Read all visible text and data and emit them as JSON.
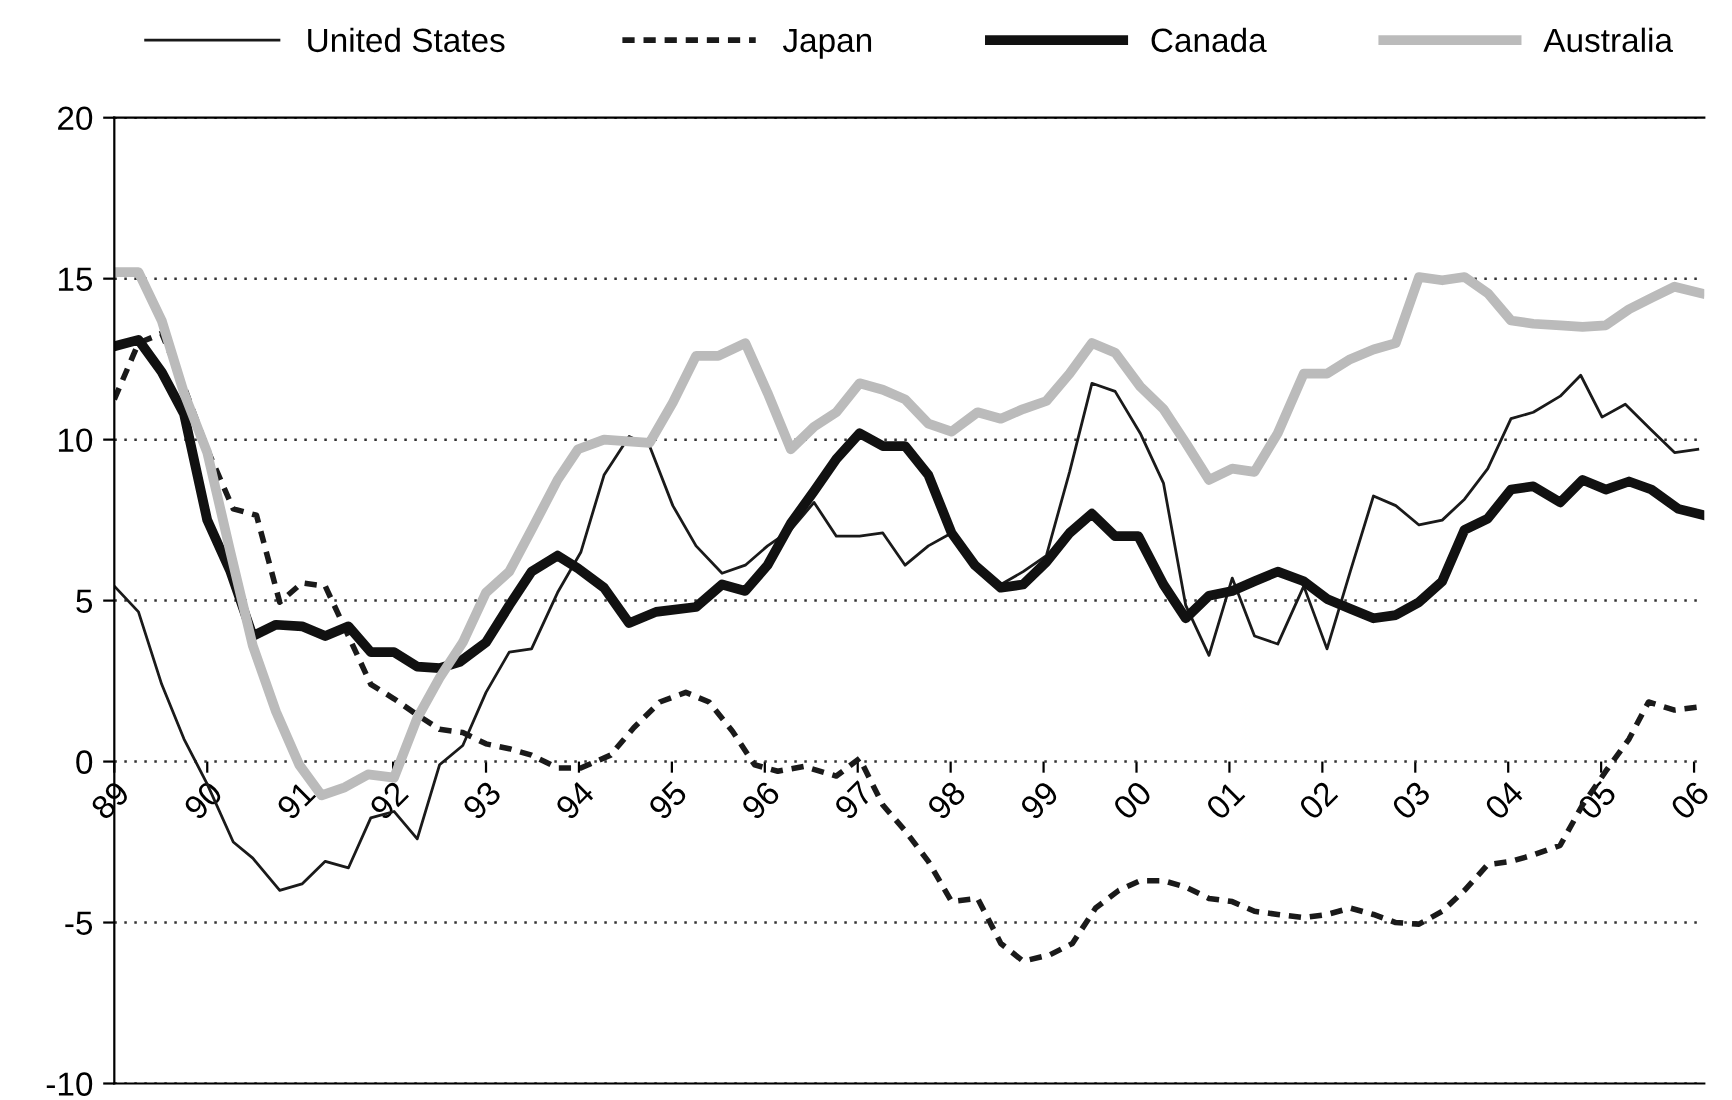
{
  "chart_data": {
    "type": "line",
    "xlim": [
      1989,
      2006.11
    ],
    "ylim": [
      -10,
      20
    ],
    "yticks": [
      -10,
      -5,
      0,
      5,
      10,
      15,
      20
    ],
    "xticks": [
      {
        "value": 1989,
        "label": "89"
      },
      {
        "value": 1990,
        "label": "90"
      },
      {
        "value": 1991,
        "label": "91"
      },
      {
        "value": 1992,
        "label": "92"
      },
      {
        "value": 1993,
        "label": "93"
      },
      {
        "value": 1994,
        "label": "94"
      },
      {
        "value": 1995,
        "label": "95"
      },
      {
        "value": 1996,
        "label": "96"
      },
      {
        "value": 1997,
        "label": "97"
      },
      {
        "value": 1998,
        "label": "98"
      },
      {
        "value": 1999,
        "label": "99"
      },
      {
        "value": 2000,
        "label": "00"
      },
      {
        "value": 2001,
        "label": "01"
      },
      {
        "value": 2002,
        "label": "02"
      },
      {
        "value": 2003,
        "label": "03"
      },
      {
        "value": 2004,
        "label": "04"
      },
      {
        "value": 2005,
        "label": "05"
      },
      {
        "value": 2006,
        "label": "06"
      }
    ],
    "grid": "y",
    "legend": "top",
    "marker": "none",
    "series": [
      {
        "name": "United States",
        "color": "#1a1a1a",
        "line_style": "solid",
        "x": [
          1989.0,
          1989.26,
          1989.51,
          1989.75,
          1990.0,
          1990.28,
          1990.49,
          1990.78,
          1991.02,
          1991.27,
          1991.52,
          1991.76,
          1992.01,
          1992.26,
          1992.5,
          1992.75,
          1993.0,
          1993.25,
          1993.49,
          1993.77,
          1994.02,
          1994.27,
          1994.54,
          1994.76,
          1995.01,
          1995.26,
          1995.54,
          1995.79,
          1996.03,
          1996.28,
          1996.53,
          1996.77,
          1997.02,
          1997.27,
          1997.51,
          1997.76,
          1998.01,
          1998.29,
          1998.54,
          1998.78,
          1999.03,
          1999.28,
          1999.52,
          1999.77,
          2000.04,
          2000.29,
          2000.53,
          2000.78,
          2001.03,
          2001.27,
          2001.52,
          2001.8,
          2002.05,
          2002.3,
          2002.55,
          2002.79,
          2003.04,
          2003.29,
          2003.53,
          2003.78,
          2004.03,
          2004.27,
          2004.56,
          2004.78,
          2005.01,
          2005.26,
          2005.54,
          2005.79,
          2006.04
        ],
        "values": [
          5.45,
          4.65,
          2.4,
          0.7,
          -0.7,
          -2.5,
          -3.0,
          -4.0,
          -3.8,
          -3.1,
          -3.3,
          -1.75,
          -1.55,
          -2.4,
          -0.1,
          0.5,
          2.15,
          3.4,
          3.5,
          5.25,
          6.5,
          8.9,
          10.1,
          9.8,
          7.95,
          6.7,
          5.85,
          6.1,
          6.7,
          7.2,
          8.05,
          7.0,
          7.0,
          7.1,
          6.1,
          6.7,
          7.1,
          6.1,
          5.5,
          5.9,
          6.4,
          9.0,
          11.75,
          11.5,
          10.2,
          8.65,
          4.85,
          3.3,
          5.7,
          3.9,
          3.65,
          5.45,
          3.5,
          5.9,
          8.25,
          7.95,
          7.35,
          7.5,
          8.15,
          9.1,
          10.65,
          10.85,
          11.35,
          12.0,
          10.7,
          11.1,
          10.3,
          9.6,
          9.7
        ]
      },
      {
        "name": "Japan",
        "color": "#1a1a1a",
        "line_style": "dashed",
        "x": [
          1989.0,
          1989.26,
          1989.51,
          1989.75,
          1990.0,
          1990.28,
          1990.53,
          1990.78,
          1991.02,
          1991.27,
          1991.52,
          1991.76,
          1992.01,
          1992.26,
          1992.5,
          1992.75,
          1993.0,
          1993.25,
          1993.49,
          1993.77,
          1994.02,
          1994.34,
          1994.59,
          1994.87,
          1995.15,
          1995.4,
          1995.65,
          1995.89,
          1996.14,
          1996.42,
          1996.77,
          1997.02,
          1997.27,
          1997.51,
          1997.76,
          1998.01,
          1998.29,
          1998.54,
          1998.78,
          1999.07,
          1999.31,
          1999.56,
          1999.81,
          2000.04,
          2000.29,
          2000.53,
          2000.78,
          2001.03,
          2001.27,
          2001.52,
          2001.8,
          2002.05,
          2002.3,
          2002.55,
          2002.79,
          2003.04,
          2003.29,
          2003.53,
          2003.78,
          2004.03,
          2004.27,
          2004.56,
          2004.8,
          2005.05,
          2005.3,
          2005.51,
          2005.79,
          2006.07
        ],
        "values": [
          11.25,
          13.0,
          13.3,
          11.65,
          9.7,
          7.85,
          7.65,
          4.95,
          5.55,
          5.45,
          3.9,
          2.4,
          1.95,
          1.45,
          1.0,
          0.9,
          0.55,
          0.4,
          0.2,
          -0.2,
          -0.2,
          0.2,
          1.05,
          1.85,
          2.15,
          1.85,
          0.95,
          -0.1,
          -0.3,
          -0.15,
          -0.45,
          0.1,
          -1.35,
          -2.15,
          -3.1,
          -4.35,
          -4.25,
          -5.65,
          -6.2,
          -6.0,
          -5.65,
          -4.55,
          -4.0,
          -3.7,
          -3.7,
          -3.9,
          -4.25,
          -4.35,
          -4.65,
          -4.75,
          -4.85,
          -4.75,
          -4.55,
          -4.75,
          -5.0,
          -5.05,
          -4.65,
          -4.0,
          -3.2,
          -3.1,
          -2.9,
          -2.6,
          -1.35,
          -0.3,
          0.7,
          1.85,
          1.6,
          1.7
        ]
      },
      {
        "name": "Canada",
        "color": "#111111",
        "line_style": "solid",
        "x": [
          1989.0,
          1989.26,
          1989.51,
          1989.75,
          1990.0,
          1990.25,
          1990.49,
          1990.74,
          1991.02,
          1991.27,
          1991.52,
          1991.76,
          1992.01,
          1992.26,
          1992.5,
          1992.72,
          1993.0,
          1993.25,
          1993.49,
          1993.77,
          1993.99,
          1994.27,
          1994.54,
          1994.83,
          1995.26,
          1995.54,
          1995.79,
          1996.03,
          1996.28,
          1996.53,
          1996.77,
          1997.02,
          1997.27,
          1997.51,
          1997.76,
          1998.01,
          1998.26,
          1998.54,
          1998.78,
          1999.03,
          1999.28,
          1999.52,
          1999.77,
          2000.02,
          2000.29,
          2000.53,
          2000.78,
          2001.03,
          2001.27,
          2001.52,
          2001.8,
          2002.05,
          2002.3,
          2002.55,
          2002.79,
          2003.04,
          2003.29,
          2003.53,
          2003.78,
          2004.03,
          2004.27,
          2004.56,
          2004.8,
          2005.05,
          2005.3,
          2005.54,
          2005.83,
          2006.11
        ],
        "values": [
          12.9,
          13.1,
          12.1,
          10.8,
          7.5,
          5.9,
          3.9,
          4.25,
          4.2,
          3.9,
          4.2,
          3.4,
          3.4,
          2.95,
          2.9,
          3.1,
          3.7,
          4.85,
          5.9,
          6.4,
          6.0,
          5.4,
          4.3,
          4.65,
          4.8,
          5.5,
          5.3,
          6.1,
          7.4,
          8.4,
          9.4,
          10.2,
          9.8,
          9.8,
          8.9,
          7.1,
          6.1,
          5.4,
          5.5,
          6.2,
          7.1,
          7.7,
          7.0,
          7.0,
          5.5,
          4.45,
          5.15,
          5.3,
          5.6,
          5.9,
          5.6,
          5.05,
          4.75,
          4.45,
          4.55,
          4.95,
          5.6,
          7.2,
          7.55,
          8.45,
          8.55,
          8.05,
          8.75,
          8.45,
          8.7,
          8.45,
          7.85,
          7.65
        ]
      },
      {
        "name": "Australia",
        "color": "#bbbbbb",
        "line_style": "solid",
        "x": [
          1989.0,
          1989.26,
          1989.51,
          1989.75,
          1990.0,
          1990.25,
          1990.49,
          1990.74,
          1990.99,
          1991.23,
          1991.48,
          1991.73,
          1992.01,
          1992.26,
          1992.5,
          1992.75,
          1993.0,
          1993.25,
          1993.49,
          1993.77,
          1993.99,
          1994.27,
          1994.76,
          1995.01,
          1995.26,
          1995.5,
          1995.79,
          1996.03,
          1996.28,
          1996.53,
          1996.77,
          1997.02,
          1997.27,
          1997.51,
          1997.76,
          1998.01,
          1998.29,
          1998.54,
          1998.78,
          1999.03,
          1999.28,
          1999.52,
          1999.77,
          2000.04,
          2000.29,
          2000.53,
          2000.78,
          2001.03,
          2001.27,
          2001.52,
          2001.8,
          2002.05,
          2002.3,
          2002.55,
          2002.79,
          2003.04,
          2003.29,
          2003.53,
          2003.78,
          2004.03,
          2004.27,
          2004.56,
          2004.8,
          2005.05,
          2005.3,
          2005.54,
          2005.79,
          2006.07
        ],
        "values": [
          15.2,
          15.2,
          13.7,
          11.45,
          9.6,
          6.5,
          3.6,
          1.55,
          -0.1,
          -1.05,
          -0.8,
          -0.4,
          -0.5,
          1.35,
          2.6,
          3.7,
          5.25,
          5.9,
          7.2,
          8.75,
          9.7,
          10.0,
          9.9,
          11.15,
          12.6,
          12.6,
          13.0,
          11.45,
          9.7,
          10.4,
          10.85,
          11.75,
          11.55,
          11.25,
          10.5,
          10.25,
          10.85,
          10.65,
          10.95,
          11.2,
          12.05,
          13.0,
          12.7,
          11.65,
          10.95,
          9.9,
          8.75,
          9.1,
          9.0,
          10.2,
          12.05,
          12.05,
          12.5,
          12.8,
          13.0,
          15.05,
          14.95,
          15.05,
          14.55,
          13.7,
          13.6,
          13.55,
          13.5,
          13.55,
          14.05,
          14.4,
          14.75,
          14.55
        ]
      }
    ]
  }
}
